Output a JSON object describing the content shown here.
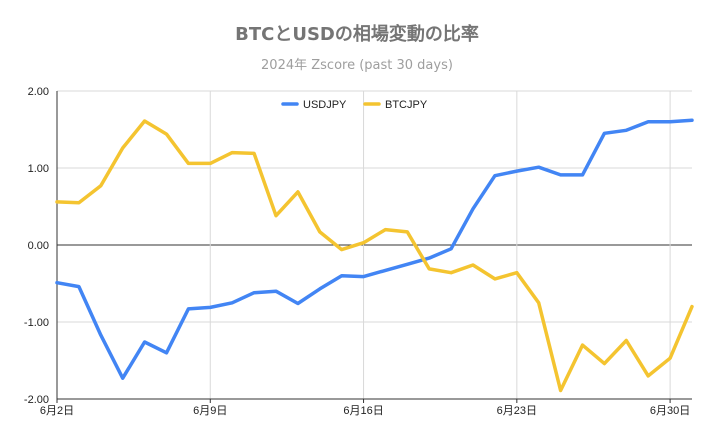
{
  "chart_data": {
    "type": "line",
    "title": "BTCとUSDの相場変動の比率",
    "subtitle": "2024年 Zscore (past 30 days)",
    "xlabel": "",
    "ylabel": "",
    "ylim": [
      -2.0,
      2.0
    ],
    "yticks": [
      "2.00",
      "1.00",
      "0.00",
      "-1.00",
      "-2.00"
    ],
    "xticks": [
      "6月2日",
      "6月9日",
      "6月16日",
      "6月23日",
      "6月30日"
    ],
    "grid": true,
    "legend_position": "top",
    "x": [
      "6/2",
      "6/3",
      "6/4",
      "6/5",
      "6/6",
      "6/7",
      "6/8",
      "6/9",
      "6/10",
      "6/11",
      "6/12",
      "6/13",
      "6/14",
      "6/15",
      "6/16",
      "6/17",
      "6/18",
      "6/19",
      "6/20",
      "6/21",
      "6/22",
      "6/23",
      "6/24",
      "6/25",
      "6/26",
      "6/27",
      "6/28",
      "6/29",
      "6/30",
      "7/1"
    ],
    "series": [
      {
        "name": "USDJPY",
        "color": "#4285f4",
        "values": [
          -0.49,
          -0.54,
          -1.17,
          -1.73,
          -1.26,
          -1.4,
          -0.83,
          -0.81,
          -0.75,
          -0.62,
          -0.6,
          -0.76,
          -0.57,
          -0.4,
          -0.41,
          -0.33,
          -0.25,
          -0.17,
          -0.05,
          0.47,
          0.9,
          0.96,
          1.01,
          0.91,
          0.91,
          1.45,
          1.49,
          1.6,
          1.6,
          1.62
        ]
      },
      {
        "name": "BTCJPY",
        "color": "#f4c430",
        "values": [
          0.56,
          0.55,
          0.77,
          1.26,
          1.61,
          1.44,
          1.06,
          1.06,
          1.2,
          1.19,
          0.38,
          0.69,
          0.17,
          -0.06,
          0.03,
          0.2,
          0.17,
          -0.31,
          -0.36,
          -0.26,
          -0.44,
          -0.36,
          -0.75,
          -1.89,
          -1.3,
          -1.54,
          -1.24,
          -1.7,
          -1.47,
          -0.8
        ]
      }
    ]
  }
}
